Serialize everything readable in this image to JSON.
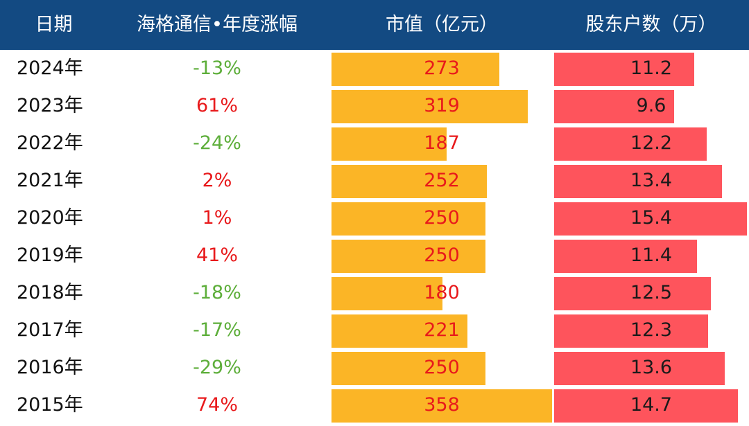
{
  "header": {
    "date": "日期",
    "change": "海格通信•年度涨幅",
    "mcap": "市值（亿元）",
    "holders": "股东户数（万）"
  },
  "colors": {
    "header_bg": "#134a82",
    "mcap_bar": "#fbb526",
    "holders_bar": "#fe545c",
    "positive": "#e8191b",
    "negative": "#5dae3a",
    "value_text_mcap": "#e8191b",
    "value_text_holders": "#1a1a1a"
  },
  "chart_data": {
    "type": "table",
    "columns": [
      "日期",
      "海格通信•年度涨幅",
      "市值（亿元）",
      "股东户数（万）"
    ],
    "rows": [
      {
        "date": "2024年",
        "change": "-13%",
        "change_value": -13,
        "mcap": "273",
        "mcap_value": 273,
        "holders": "11.2",
        "holders_value": 11.2
      },
      {
        "date": "2023年",
        "change": "61%",
        "change_value": 61,
        "mcap": "319",
        "mcap_value": 319,
        "holders": "9.6",
        "holders_value": 9.6
      },
      {
        "date": "2022年",
        "change": "-24%",
        "change_value": -24,
        "mcap": "187",
        "mcap_value": 187,
        "holders": "12.2",
        "holders_value": 12.2
      },
      {
        "date": "2021年",
        "change": "2%",
        "change_value": 2,
        "mcap": "252",
        "mcap_value": 252,
        "holders": "13.4",
        "holders_value": 13.4
      },
      {
        "date": "2020年",
        "change": "1%",
        "change_value": 1,
        "mcap": "250",
        "mcap_value": 250,
        "holders": "15.4",
        "holders_value": 15.4
      },
      {
        "date": "2019年",
        "change": "41%",
        "change_value": 41,
        "mcap": "250",
        "mcap_value": 250,
        "holders": "11.4",
        "holders_value": 11.4
      },
      {
        "date": "2018年",
        "change": "-18%",
        "change_value": -18,
        "mcap": "180",
        "mcap_value": 180,
        "holders": "12.5",
        "holders_value": 12.5
      },
      {
        "date": "2017年",
        "change": "-17%",
        "change_value": -17,
        "mcap": "221",
        "mcap_value": 221,
        "holders": "12.3",
        "holders_value": 12.3
      },
      {
        "date": "2016年",
        "change": "-29%",
        "change_value": -29,
        "mcap": "250",
        "mcap_value": 250,
        "holders": "13.6",
        "holders_value": 13.6
      },
      {
        "date": "2015年",
        "change": "74%",
        "change_value": 74,
        "mcap": "358",
        "mcap_value": 358,
        "holders": "14.7",
        "holders_value": 14.7
      }
    ],
    "mcap_max": 358,
    "holders_max": 15.4
  }
}
